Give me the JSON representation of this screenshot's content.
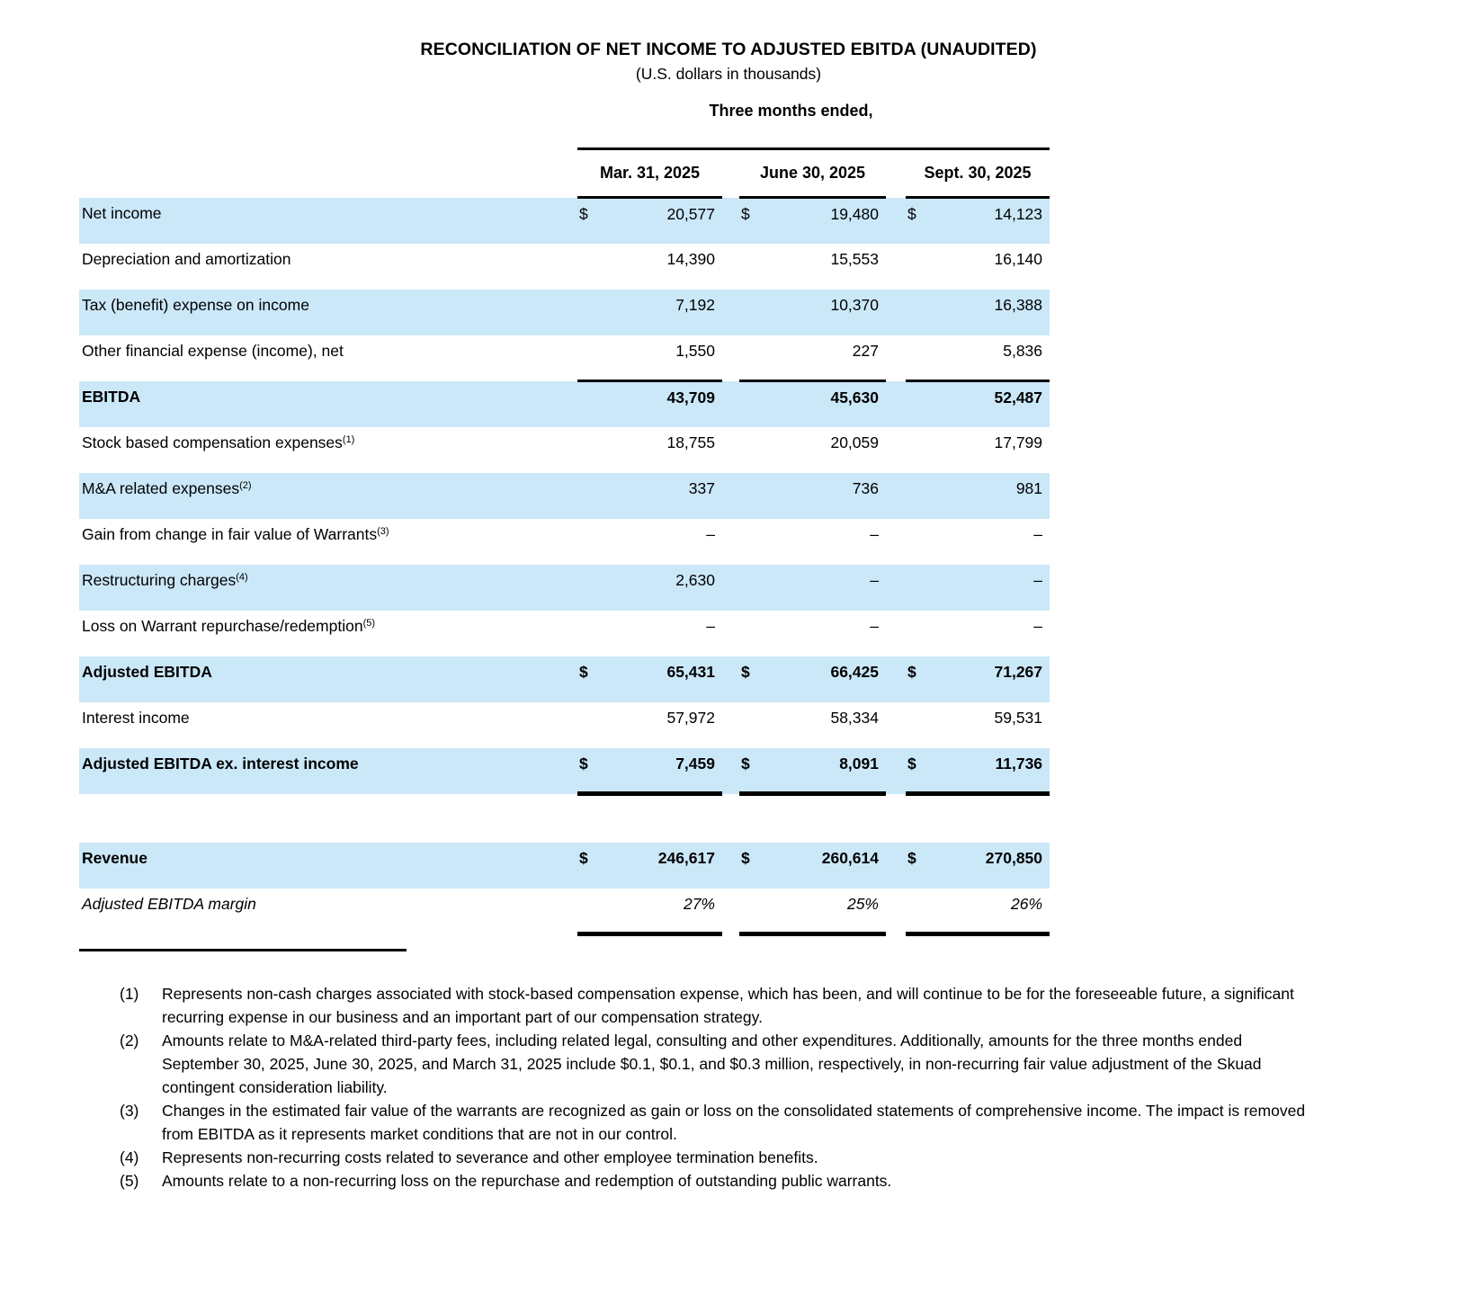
{
  "title": "RECONCILIATION OF NET INCOME TO ADJUSTED EBITDA (UNAUDITED)",
  "subtitle": "(U.S. dollars in thousands)",
  "colors": {
    "highlight": "#cbe8f9",
    "text": "#000000",
    "rule": "#000000"
  },
  "table": {
    "period_header": "Three months ended,",
    "columns": [
      "Mar. 31, 2025",
      "June 30, 2025",
      "Sept. 30, 2025"
    ],
    "rows": [
      {
        "label": "Net income",
        "sup": "",
        "dollar": true,
        "bold": false,
        "italic": false,
        "highlight": true,
        "topline": false,
        "thickline": false,
        "spacer_after": false,
        "values": [
          "20,577",
          "19,480",
          "14,123"
        ]
      },
      {
        "label": "Depreciation and amortization",
        "sup": "",
        "dollar": false,
        "bold": false,
        "italic": false,
        "highlight": false,
        "topline": false,
        "thickline": false,
        "spacer_after": false,
        "values": [
          "14,390",
          "15,553",
          "16,140"
        ]
      },
      {
        "label": "Tax (benefit) expense on income",
        "sup": "",
        "dollar": false,
        "bold": false,
        "italic": false,
        "highlight": true,
        "topline": false,
        "thickline": false,
        "spacer_after": false,
        "values": [
          "7,192",
          "10,370",
          "16,388"
        ]
      },
      {
        "label": "Other financial expense (income), net",
        "sup": "",
        "dollar": false,
        "bold": false,
        "italic": false,
        "highlight": false,
        "topline": false,
        "thickline": false,
        "spacer_after": false,
        "values": [
          "1,550",
          "227",
          "5,836"
        ]
      },
      {
        "label": "EBITDA",
        "sup": "",
        "dollar": false,
        "bold": true,
        "italic": false,
        "highlight": true,
        "topline": true,
        "thickline": false,
        "spacer_after": false,
        "values": [
          "43,709",
          "45,630",
          "52,487"
        ]
      },
      {
        "label": "Stock based compensation expenses",
        "sup": "1",
        "dollar": false,
        "bold": false,
        "italic": false,
        "highlight": false,
        "topline": false,
        "thickline": false,
        "spacer_after": false,
        "values": [
          "18,755",
          "20,059",
          "17,799"
        ]
      },
      {
        "label": "M&A related expenses",
        "sup": "2",
        "dollar": false,
        "bold": false,
        "italic": false,
        "highlight": true,
        "topline": false,
        "thickline": false,
        "spacer_after": false,
        "values": [
          "337",
          "736",
          "981"
        ]
      },
      {
        "label": "Gain from change in fair value of Warrants",
        "sup": "3",
        "dollar": false,
        "bold": false,
        "italic": false,
        "highlight": false,
        "topline": false,
        "thickline": false,
        "spacer_after": false,
        "values": [
          "–",
          "–",
          "–"
        ]
      },
      {
        "label": "Restructuring charges",
        "sup": "4",
        "dollar": false,
        "bold": false,
        "italic": false,
        "highlight": true,
        "topline": false,
        "thickline": false,
        "spacer_after": false,
        "values": [
          "2,630",
          "–",
          "–"
        ]
      },
      {
        "label": "Loss on Warrant repurchase/redemption",
        "sup": "5",
        "dollar": false,
        "bold": false,
        "italic": false,
        "highlight": false,
        "topline": false,
        "thickline": false,
        "spacer_after": false,
        "values": [
          "–",
          "–",
          "–"
        ]
      },
      {
        "label": "Adjusted EBITDA",
        "sup": "",
        "dollar": true,
        "bold": true,
        "italic": false,
        "highlight": true,
        "topline": false,
        "thickline": false,
        "spacer_after": false,
        "values": [
          "65,431",
          "66,425",
          "71,267"
        ]
      },
      {
        "label": "Interest income",
        "sup": "",
        "dollar": false,
        "bold": false,
        "italic": false,
        "highlight": false,
        "topline": false,
        "thickline": false,
        "spacer_after": false,
        "values": [
          "57,972",
          "58,334",
          "59,531"
        ]
      },
      {
        "label": "Adjusted EBITDA ex. interest income",
        "sup": "",
        "dollar": true,
        "bold": true,
        "italic": false,
        "highlight": true,
        "topline": false,
        "thickline": true,
        "spacer_after": true,
        "values": [
          "7,459",
          "8,091",
          "11,736"
        ]
      },
      {
        "label": "Revenue",
        "sup": "",
        "dollar": true,
        "bold": true,
        "italic": false,
        "highlight": true,
        "topline": false,
        "thickline": false,
        "spacer_after": false,
        "values": [
          "246,617",
          "260,614",
          "270,850"
        ]
      },
      {
        "label": "Adjusted EBITDA margin",
        "sup": "",
        "dollar": false,
        "bold": false,
        "italic": true,
        "highlight": false,
        "topline": false,
        "thickline": true,
        "spacer_after": false,
        "values": [
          "27%",
          "25%",
          "26%"
        ]
      }
    ]
  },
  "footnotes": [
    {
      "num": "(1)",
      "text": "Represents non-cash charges associated with stock-based compensation expense, which has been, and will continue to be for the foreseeable future, a significant recurring expense in our business and an important part of our compensation strategy."
    },
    {
      "num": "(2)",
      "text": "Amounts relate to M&A-related third-party fees, including related legal, consulting and other expenditures. Additionally, amounts for the three months ended September 30, 2025, June 30, 2025, and March 31, 2025 include $0.1, $0.1, and $0.3 million, respectively, in non-recurring fair value adjustment of the Skuad contingent consideration liability."
    },
    {
      "num": "(3)",
      "text": "Changes in the estimated fair value of the warrants are recognized as gain or loss on the consolidated statements of comprehensive income. The impact is removed from EBITDA as it represents market conditions that are not in our control."
    },
    {
      "num": "(4)",
      "text": "Represents non-recurring costs related to severance and other employee termination benefits."
    },
    {
      "num": "(5)",
      "text": "Amounts relate to a non-recurring loss on the repurchase and redemption of outstanding public warrants."
    }
  ]
}
